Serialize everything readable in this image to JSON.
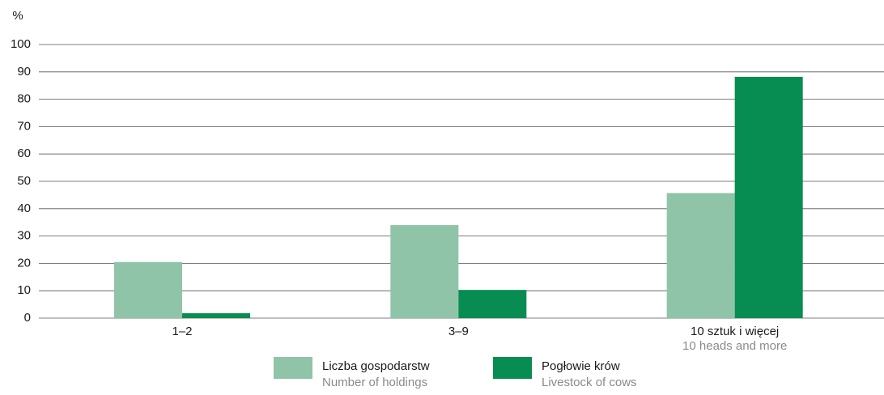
{
  "chart_data": {
    "type": "bar",
    "y_label": "%",
    "categories": [
      "1–2",
      "3–9",
      "10 sztuk i więcej"
    ],
    "category_sublabels": [
      null,
      null,
      "10 heads and more"
    ],
    "series": [
      {
        "name": "Liczba gospodarstw",
        "name_en": "Number of holdings",
        "color": "#8fc4a8",
        "values": [
          20.5,
          34,
          45.7
        ]
      },
      {
        "name": "Pogłowie krów",
        "name_en": "Livestock of cows",
        "color": "#078c52",
        "values": [
          1.8,
          10.3,
          88.2
        ]
      }
    ],
    "ylim": [
      0,
      100
    ],
    "yticks": [
      0,
      10,
      20,
      30,
      40,
      50,
      60,
      70,
      80,
      90,
      100
    ],
    "grid": true
  }
}
